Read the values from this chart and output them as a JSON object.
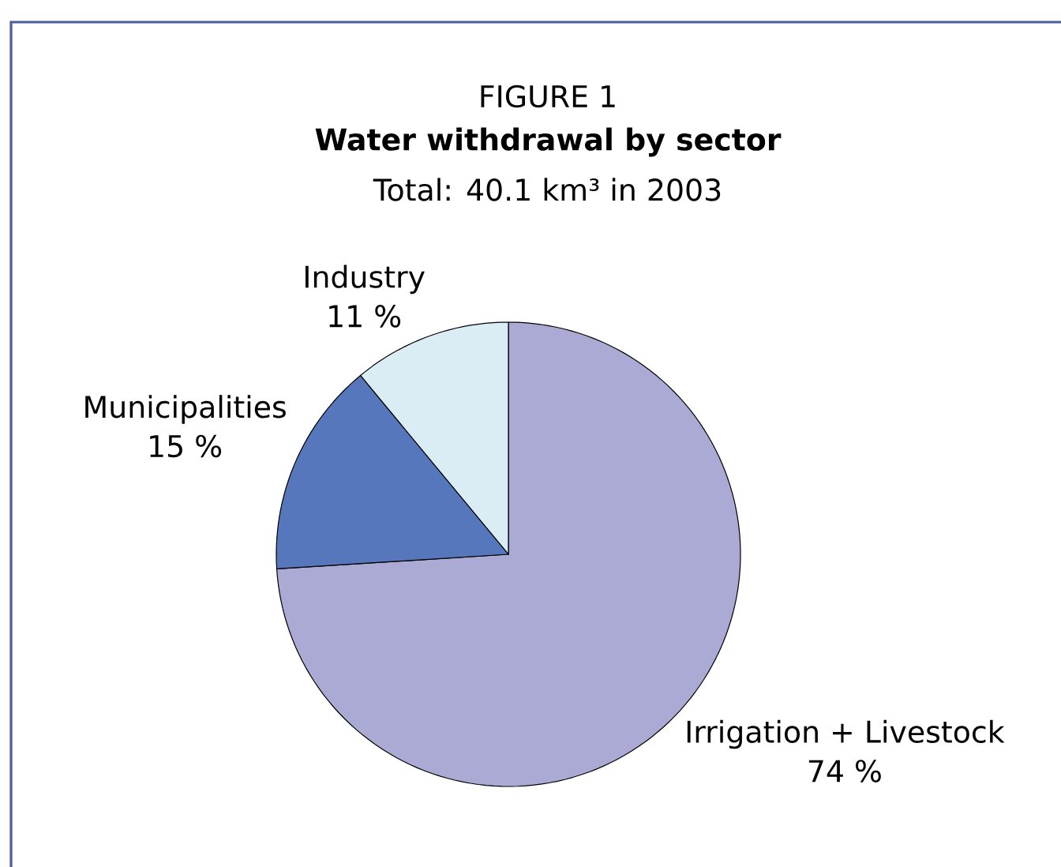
{
  "chart_data": {
    "type": "pie",
    "title": "Water withdrawal by sector",
    "subtitle": "Total: 40.1 km³ in 2003",
    "annotations": [
      "FIGURE 1"
    ],
    "categories": [
      "Irrigation + Livestock",
      "Municipalities",
      "Industry"
    ],
    "values": [
      74,
      15,
      11
    ],
    "colors": [
      "#aaaad5",
      "#5677bb",
      "#daedf5"
    ],
    "value_labels": [
      "74 %",
      "15 %",
      "11 %"
    ]
  }
}
